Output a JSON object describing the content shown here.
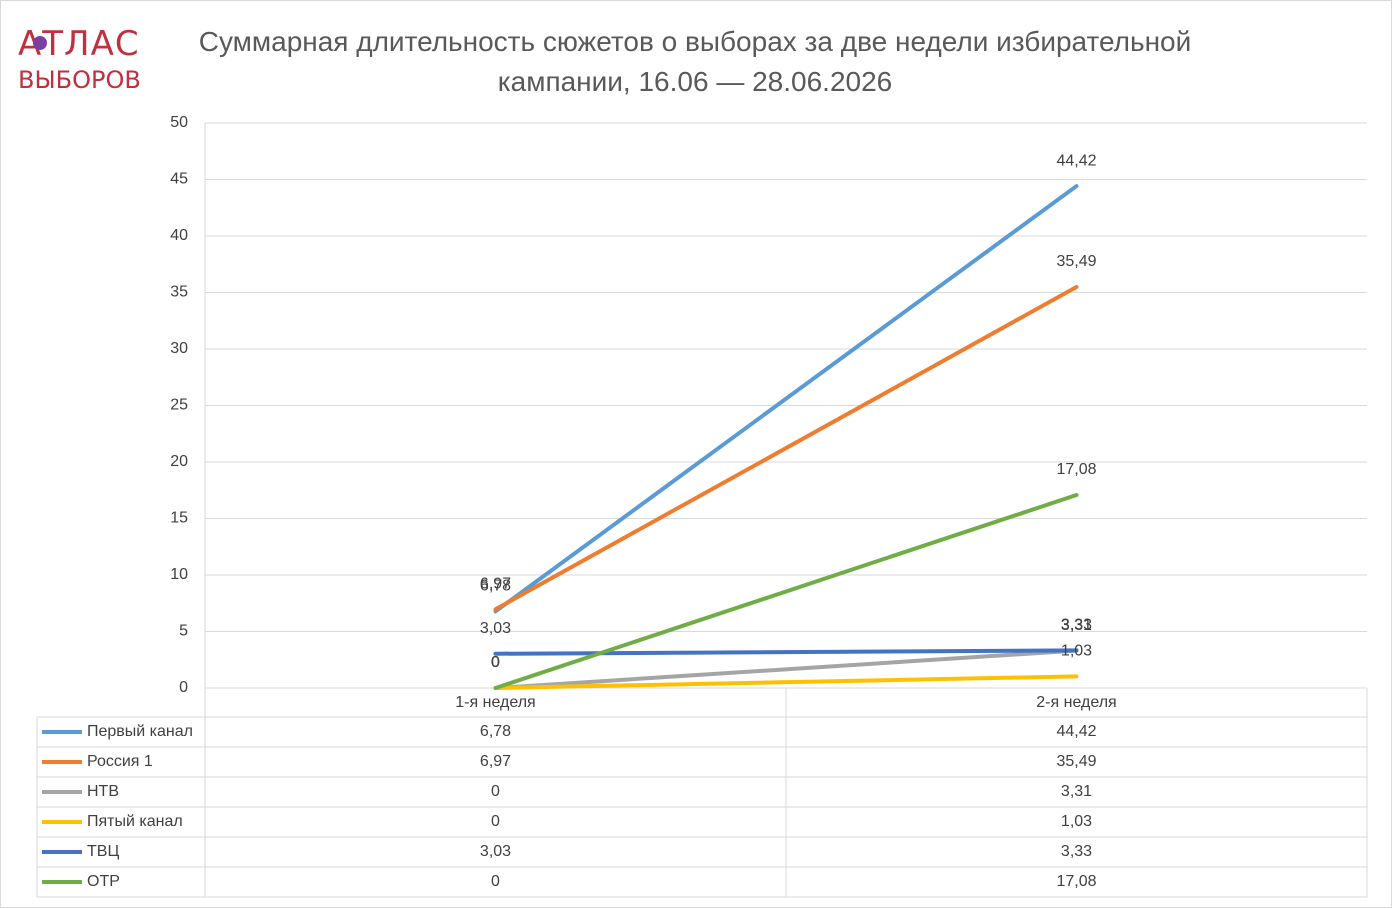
{
  "logo": {
    "top": "АТЛАС",
    "bottom": "ВЫБОРОВ"
  },
  "chart_data": {
    "type": "line",
    "title": "Суммарная длительность сюжетов о выборах за две недели избирательной кампании, 16.06 — 28.06.2026",
    "categories": [
      "1-я неделя",
      "2-я неделя"
    ],
    "series": [
      {
        "name": "Первый канал",
        "color": "#5b9bd5",
        "values": [
          6.78,
          44.42
        ],
        "value_labels": [
          "6,78",
          "44,42"
        ]
      },
      {
        "name": "Россия 1",
        "color": "#ed7d31",
        "values": [
          6.97,
          35.49
        ],
        "value_labels": [
          "6,97",
          "35,49"
        ]
      },
      {
        "name": "НТВ",
        "color": "#a5a5a5",
        "values": [
          0,
          3.31
        ],
        "value_labels": [
          "0",
          "3,31"
        ]
      },
      {
        "name": "Пятый канал",
        "color": "#ffc000",
        "values": [
          0,
          1.03
        ],
        "value_labels": [
          "0",
          "1,03"
        ]
      },
      {
        "name": "ТВЦ",
        "color": "#4472c4",
        "values": [
          3.03,
          3.33
        ],
        "value_labels": [
          "3,03",
          "3,33"
        ]
      },
      {
        "name": "ОТР",
        "color": "#70ad47",
        "values": [
          0,
          17.08
        ],
        "value_labels": [
          "0",
          "17,08"
        ]
      }
    ],
    "ylim": [
      0,
      50
    ],
    "yticks": [
      0,
      5,
      10,
      15,
      20,
      25,
      30,
      35,
      40,
      45,
      50
    ],
    "grid": true
  }
}
